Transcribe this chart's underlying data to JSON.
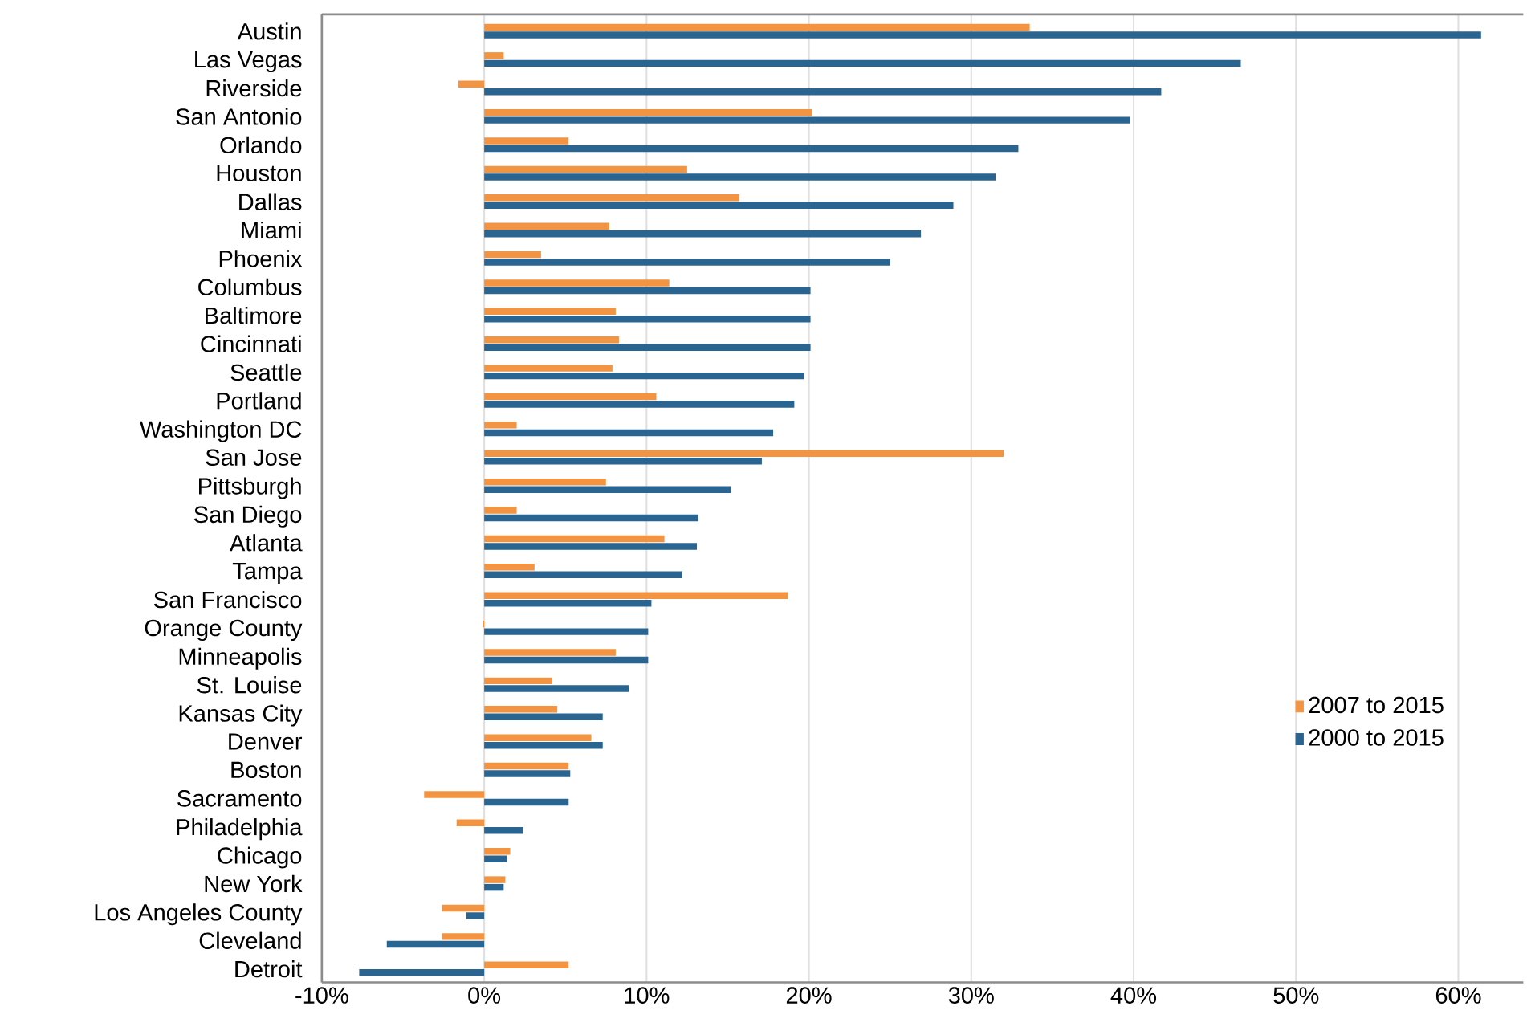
{
  "chart_data": {
    "type": "bar",
    "orientation": "horizontal",
    "categories": [
      "Austin",
      "Las Vegas",
      "Riverside",
      "San Antonio",
      "Orlando",
      "Houston",
      "Dallas",
      "Miami",
      "Phoenix",
      "Columbus",
      "Baltimore",
      "Cincinnati",
      "Seattle",
      "Portland",
      "Washington DC",
      "San Jose",
      "Pittsburgh",
      "San Diego",
      "Atlanta",
      "Tampa",
      "San Francisco",
      "Orange County",
      "Minneapolis",
      "St. Louise",
      "Kansas City",
      "Denver",
      "Boston",
      "Sacramento",
      "Philadelphia",
      "Chicago",
      "New York",
      "Los Angeles County",
      "Cleveland",
      "Detroit"
    ],
    "series": [
      {
        "name": "2007 to 2015",
        "color": "#f29441",
        "values": [
          33.6,
          1.2,
          -1.6,
          20.2,
          5.2,
          12.5,
          15.7,
          7.7,
          3.5,
          11.4,
          8.1,
          8.3,
          7.9,
          10.6,
          2.0,
          32.0,
          7.5,
          2.0,
          11.1,
          3.1,
          18.7,
          -0.1,
          8.1,
          4.2,
          4.5,
          6.6,
          5.2,
          -3.7,
          -1.7,
          1.6,
          1.3,
          -2.6,
          -2.6,
          5.2
        ]
      },
      {
        "name": "2000 to 2015",
        "color": "#2a6491",
        "values": [
          61.4,
          46.6,
          41.7,
          39.8,
          32.9,
          31.5,
          28.9,
          26.9,
          25.0,
          20.1,
          20.1,
          20.1,
          19.7,
          19.1,
          17.8,
          17.1,
          15.2,
          13.2,
          13.1,
          12.2,
          10.3,
          10.1,
          10.1,
          8.9,
          7.3,
          7.3,
          5.3,
          5.2,
          2.4,
          1.4,
          1.2,
          -1.1,
          -6.0,
          -7.7
        ]
      }
    ],
    "xlim": [
      -10,
      64
    ],
    "xticks": [
      {
        "value": -10,
        "label": "-10%"
      },
      {
        "value": 0,
        "label": "0%"
      },
      {
        "value": 10,
        "label": "10%"
      },
      {
        "value": 20,
        "label": "20%"
      },
      {
        "value": 30,
        "label": "30%"
      },
      {
        "value": 40,
        "label": "40%"
      },
      {
        "value": 50,
        "label": "50%"
      },
      {
        "value": 60,
        "label": "60%"
      }
    ],
    "grid": "x",
    "legend": "right"
  }
}
